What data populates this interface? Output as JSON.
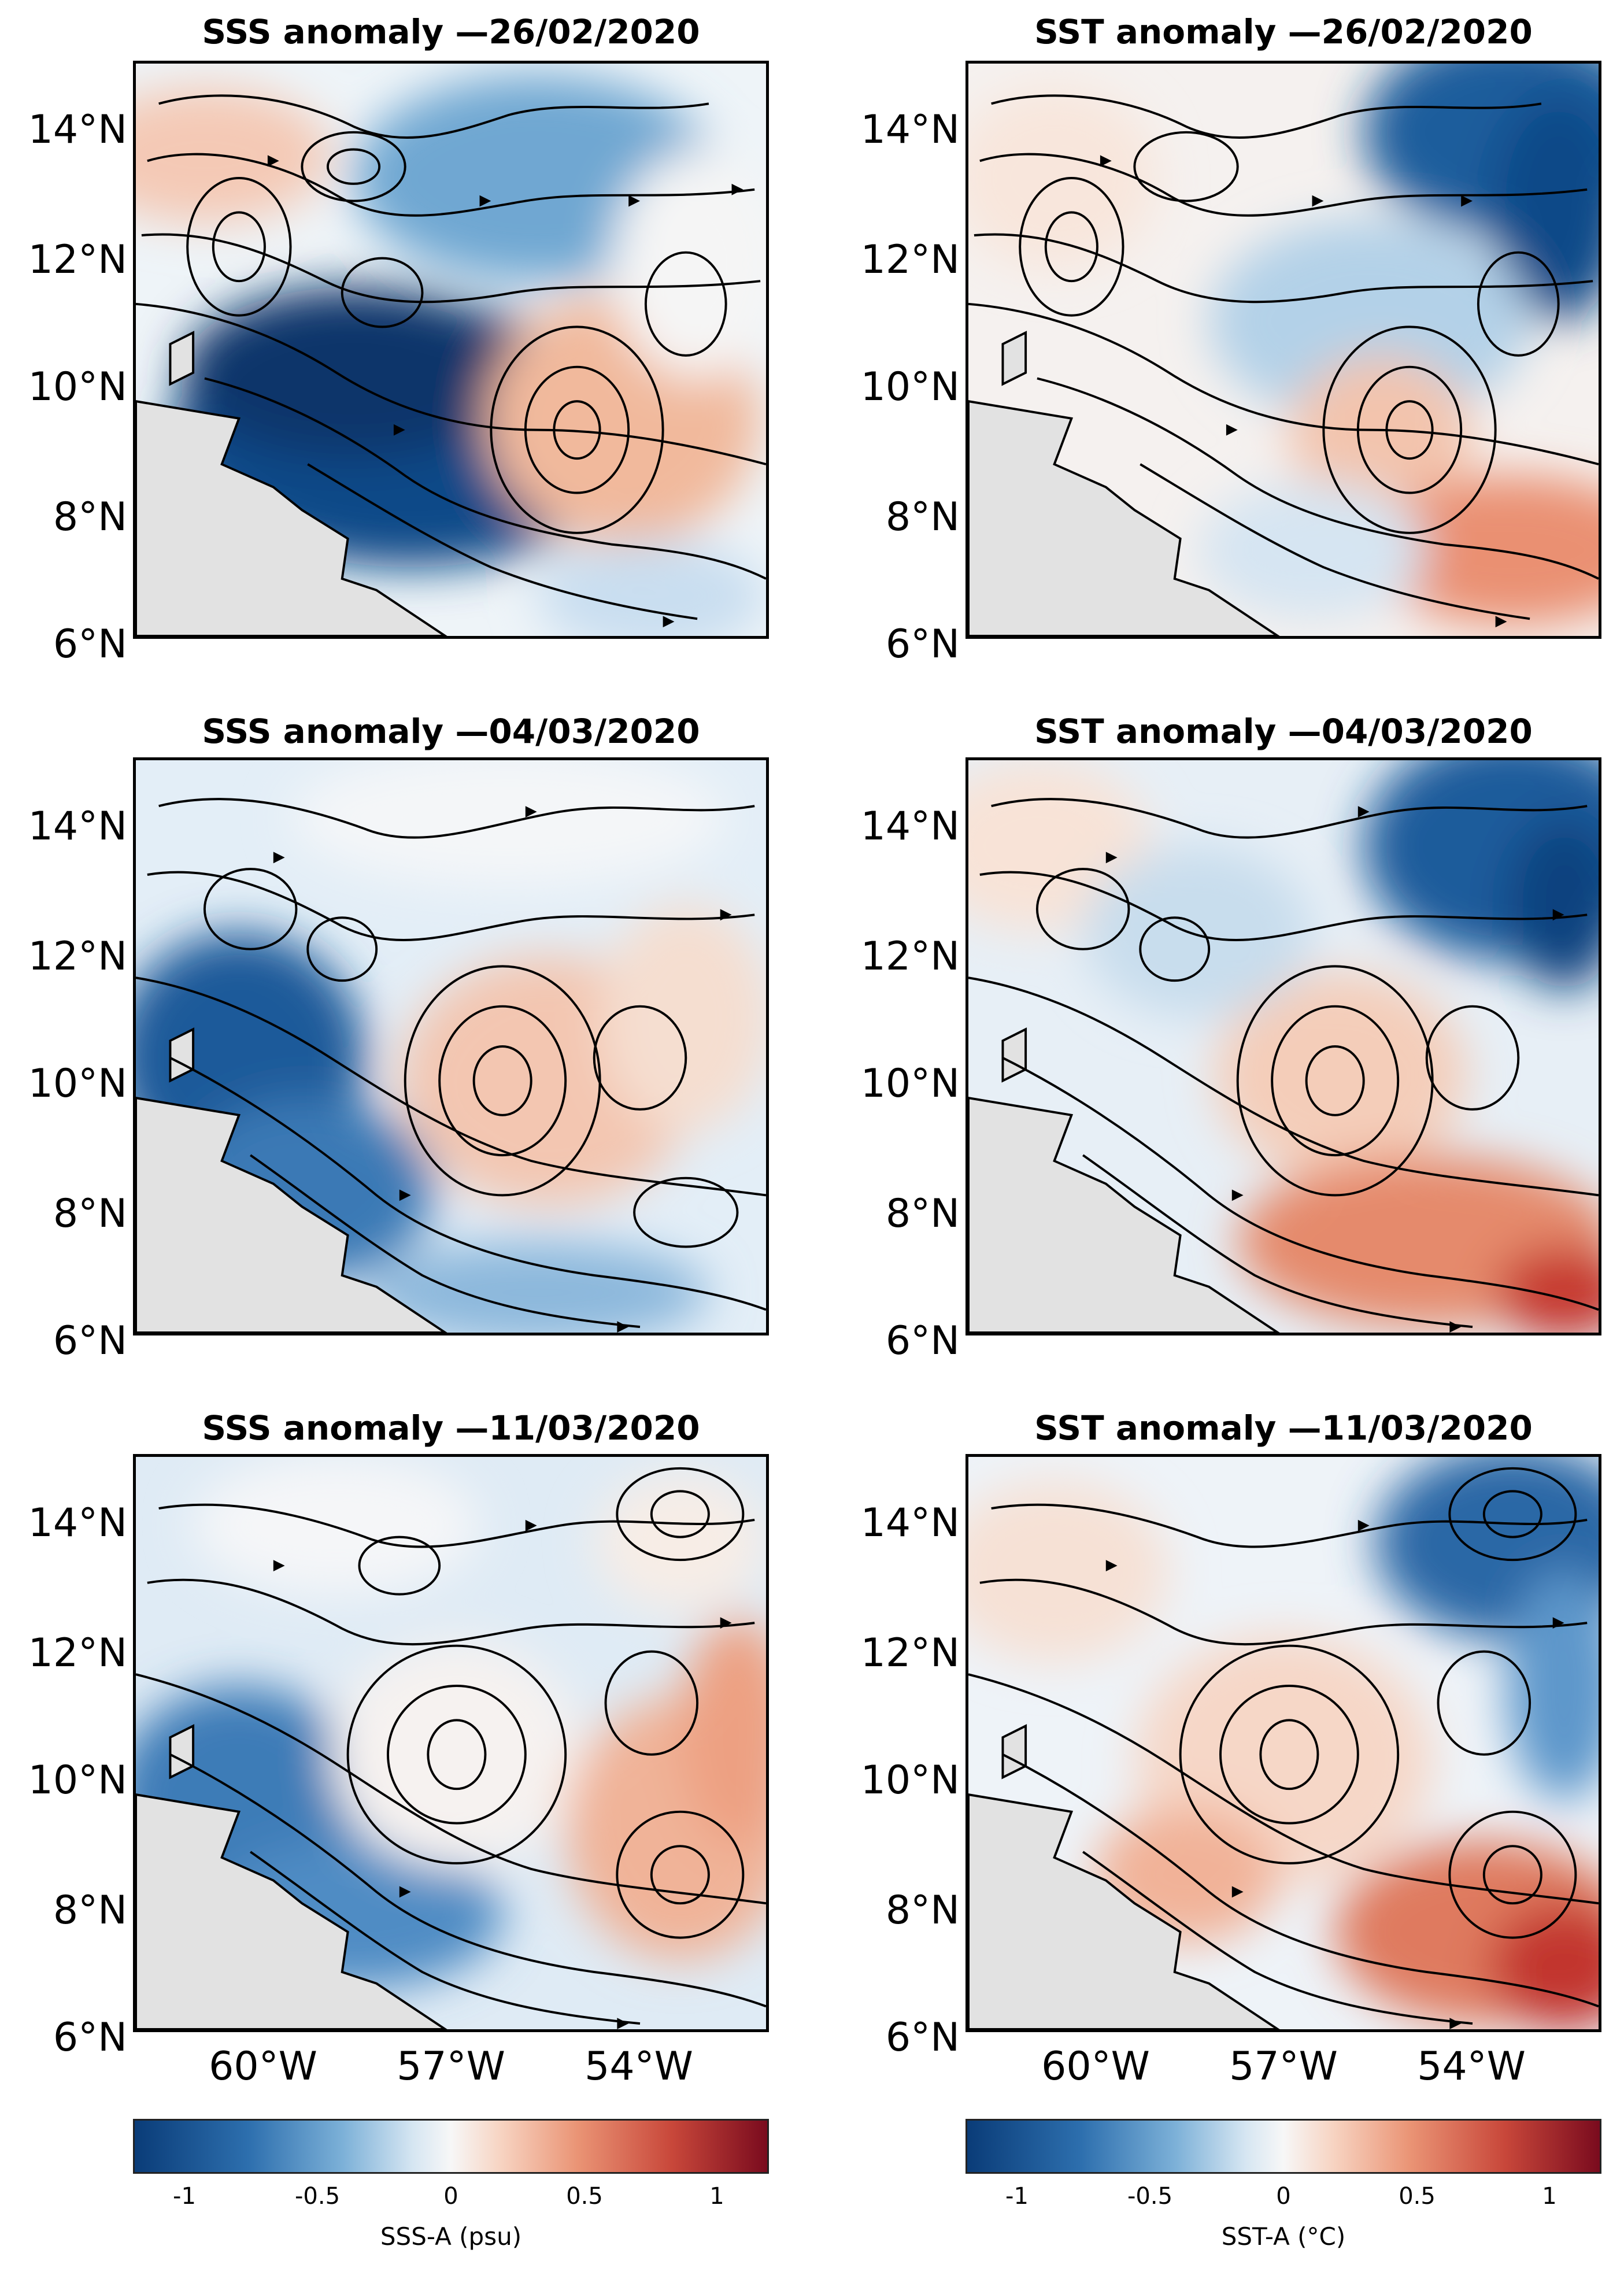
{
  "panels": [
    {
      "title": "SSS anomaly —26/02/2020",
      "variable": "SSS"
    },
    {
      "title": "SST anomaly —26/02/2020",
      "variable": "SST"
    },
    {
      "title": "SSS anomaly —04/03/2020",
      "variable": "SSS"
    },
    {
      "title": "SST anomaly —04/03/2020",
      "variable": "SST"
    },
    {
      "title": "SSS anomaly —11/03/2020",
      "variable": "SSS"
    },
    {
      "title": "SST anomaly —11/03/2020",
      "variable": "SST"
    }
  ],
  "axes": {
    "lat_ticks": [
      "14°N",
      "12°N",
      "10°N",
      "8°N",
      "6°N"
    ],
    "lon_ticks": [
      "60°W",
      "57°W",
      "54°W"
    ]
  },
  "colorbars": [
    {
      "label": "SSS-A (psu)",
      "ticks": [
        "-1",
        "-0.5",
        "0",
        "0.5",
        "1"
      ],
      "range": [
        -1.2,
        1.2
      ]
    },
    {
      "label": "SST-A (°C)",
      "ticks": [
        "-1",
        "-0.5",
        "0",
        "0.5",
        "1"
      ],
      "range": [
        -1.2,
        1.2
      ]
    }
  ],
  "colors": {
    "strong_negative": "#0a3c78",
    "negative": "#4f8fc6",
    "neutral": "#f5f5f5",
    "positive": "#f0a582",
    "strong_positive": "#8a0f22",
    "land": "#e2e2e2",
    "streamline": "#000000"
  }
}
